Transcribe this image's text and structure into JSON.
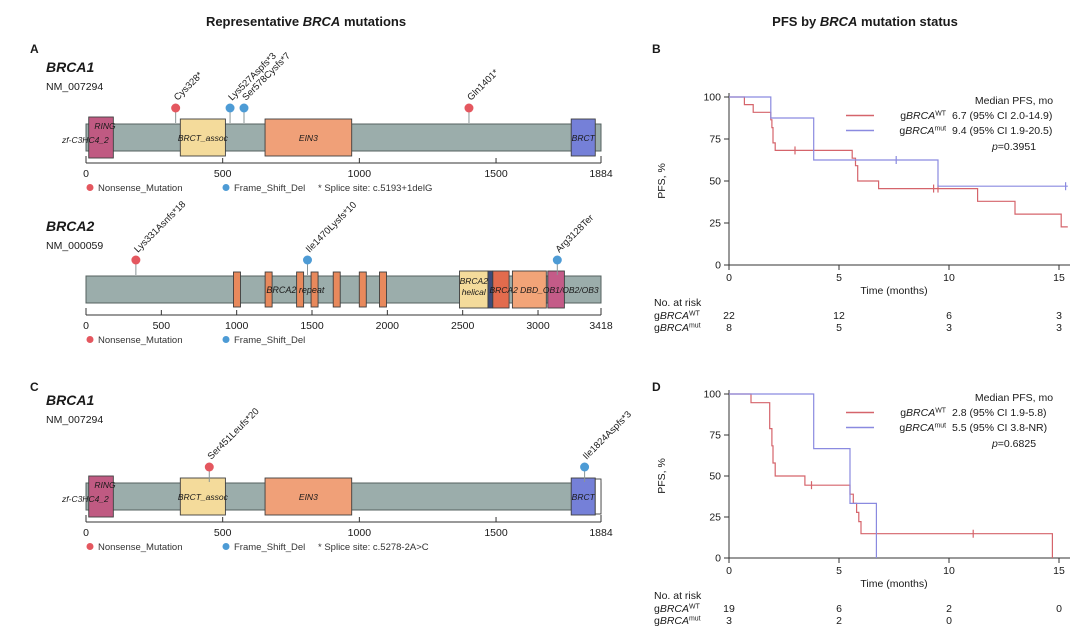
{
  "titles": {
    "left": {
      "pre": "Representative ",
      "gene": "BRCA",
      "post": " mutations"
    },
    "right": {
      "pre": "PFS by ",
      "gene": "BRCA",
      "post": " mutation status"
    }
  },
  "panel_labels": {
    "a": "A",
    "b": "B",
    "c": "C",
    "d": "D"
  },
  "colors": {
    "bar_body": "#9badab",
    "bar_border": "#55615f",
    "nonsense": "#e4575f",
    "frameshift": "#4d9bd5",
    "km_wt": "#d5646b",
    "km_mut": "#8a8ae0",
    "domain_border": "#3f3f3f",
    "axis": "#333333",
    "ring": "#c05a82",
    "brct_assoc": "#f4db9b",
    "ein3": "#f0a078",
    "brct": "#7580d8",
    "repeat": "#e8895c",
    "helical": "#f4db9b",
    "navy": "#3d4b7a",
    "dbd": "#e26b4d",
    "dbd_ob": "#f2a478",
    "ob_mag": "#c45b88",
    "end_box": "#ffffff"
  },
  "chart_data": [
    {
      "type": "lollipop",
      "panel": "A",
      "gene": "BRCA1",
      "transcript": "NM_007294",
      "length": 1884,
      "axis_ticks": [
        0,
        500,
        1000,
        1500,
        1884
      ],
      "domains": [
        {
          "label": "RING",
          "sublabel": "zf-C3HC4_2",
          "start": 10,
          "end": 100,
          "color_key": "ring",
          "style": "ring"
        },
        {
          "label": "BRCT_assoc",
          "start": 345,
          "end": 510,
          "color_key": "brct_assoc"
        },
        {
          "label": "EIN3",
          "start": 655,
          "end": 972,
          "color_key": "ein3"
        },
        {
          "label": "BRCT",
          "start": 1775,
          "end": 1863,
          "color_key": "brct"
        }
      ],
      "mutations": [
        {
          "label": "Cys328*",
          "pos": 328,
          "type": "nonsense"
        },
        {
          "label": "Lys527Aspfs*3",
          "pos": 527,
          "type": "frameshift"
        },
        {
          "label": "Ser578Cysfs*7",
          "pos": 578,
          "type": "frameshift"
        },
        {
          "label": "Gln1401*",
          "pos": 1401,
          "type": "nonsense"
        }
      ],
      "legend": {
        "nonsense": "Nonsense_Mutation",
        "frameshift": "Frame_Shift_Del",
        "note": "* Splice site: c.5193+1delG"
      }
    },
    {
      "type": "lollipop",
      "panel": "A",
      "gene": "BRCA2",
      "transcript": "NM_000059",
      "length": 3418,
      "axis_ticks": [
        0,
        500,
        1000,
        1500,
        2000,
        2500,
        3000,
        3418
      ],
      "repeats": [
        1002,
        1212,
        1421,
        1517,
        1664,
        1837,
        1971
      ],
      "repeat_label": {
        "text": "BRCA2 repeat",
        "center": 1390
      },
      "domains": [
        {
          "label": "BRCA2",
          "label2": "helical",
          "start": 2479,
          "end": 2668,
          "color_key": "helical"
        },
        {
          "label": "",
          "start": 2668,
          "end": 2700,
          "color_key": "navy"
        },
        {
          "label": "",
          "start": 2700,
          "end": 2808,
          "color_key": "dbd"
        },
        {
          "label": "",
          "start": 2830,
          "end": 3055,
          "color_key": "dbd_ob"
        },
        {
          "label": "",
          "start": 3065,
          "end": 3175,
          "color_key": "ob_mag"
        }
      ],
      "span_label": {
        "text": "BRCA2 DBD_OB1/OB2/OB3",
        "center": 3040
      },
      "mutations": [
        {
          "label": "Lys331Asnfs*18",
          "pos": 331,
          "type": "nonsense"
        },
        {
          "label": "Ile1470Lysfs*10",
          "pos": 1470,
          "type": "frameshift"
        },
        {
          "label": "Arg3128Ter",
          "pos": 3128,
          "type": "frameshift"
        }
      ],
      "legend": {
        "nonsense": "Nonsense_Mutation",
        "frameshift": "Frame_Shift_Del",
        "note": ""
      }
    },
    {
      "type": "lollipop",
      "panel": "C",
      "gene": "BRCA1",
      "transcript": "NM_007294",
      "length": 1884,
      "axis_ticks": [
        0,
        500,
        1000,
        1500,
        1884
      ],
      "domains": [
        {
          "label": "RING",
          "sublabel": "zf-C3HC4_2",
          "start": 10,
          "end": 100,
          "color_key": "ring",
          "style": "ring"
        },
        {
          "label": "BRCT_assoc",
          "start": 345,
          "end": 510,
          "color_key": "brct_assoc"
        },
        {
          "label": "EIN3",
          "start": 655,
          "end": 972,
          "color_key": "ein3"
        },
        {
          "label": "BRCT",
          "start": 1775,
          "end": 1863,
          "color_key": "brct"
        }
      ],
      "end_box": {
        "start": 1863,
        "end": 1884
      },
      "mutations": [
        {
          "label": "Ser451Leufs*20",
          "pos": 451,
          "type": "nonsense"
        },
        {
          "label": "Ile1824Aspfs*3",
          "pos": 1824,
          "type": "frameshift"
        }
      ],
      "legend": {
        "nonsense": "Nonsense_Mutation",
        "frameshift": "Frame_Shift_Del",
        "note": "* Splice site: c.5278-2A>C"
      }
    },
    {
      "type": "km",
      "panel": "B",
      "ylabel": "PFS, %",
      "xlabel": "Time (months)",
      "yticks": [
        0,
        25,
        50,
        75,
        100
      ],
      "xticks": [
        0,
        5,
        10,
        15
      ],
      "xmax": 15.5,
      "legend": {
        "header": "Median PFS, mo",
        "p_italic": "p",
        "p_rest": "=0.3951"
      },
      "series": [
        {
          "key": "wt",
          "color_key": "km_wt",
          "prefix": "g",
          "gene": "BRCA",
          "sup": "WT",
          "median": "6.7 (95% CI 2.0-14.9)",
          "points": [
            [
              0,
              100
            ],
            [
              0.7,
              100
            ],
            [
              0.7,
              95.5
            ],
            [
              1.1,
              95.5
            ],
            [
              1.1,
              90.9
            ],
            [
              1.9,
              90.9
            ],
            [
              1.9,
              86.4
            ],
            [
              1.95,
              86.4
            ],
            [
              1.95,
              81.8
            ],
            [
              2.0,
              81.8
            ],
            [
              2.0,
              72.7
            ],
            [
              2.1,
              72.7
            ],
            [
              2.1,
              68.2
            ],
            [
              5.6,
              68.2
            ],
            [
              5.6,
              63.6
            ],
            [
              5.75,
              63.6
            ],
            [
              5.75,
              59.1
            ],
            [
              5.85,
              59.1
            ],
            [
              5.85,
              50
            ],
            [
              6.8,
              50
            ],
            [
              6.8,
              45.5
            ],
            [
              11.3,
              45.5
            ],
            [
              11.3,
              37.9
            ],
            [
              13.0,
              37.9
            ],
            [
              13.0,
              30.3
            ],
            [
              15.1,
              30.3
            ],
            [
              15.1,
              22.7
            ],
            [
              15.4,
              22.7
            ]
          ],
          "censors": [
            [
              3.0,
              68.2
            ],
            [
              9.3,
              45.5
            ],
            [
              9.5,
              45.5
            ]
          ]
        },
        {
          "key": "mut",
          "color_key": "km_mut",
          "prefix": "g",
          "gene": "BRCA",
          "sup": "mut",
          "median": "9.4 (95% CI 1.9-20.5)",
          "points": [
            [
              0,
              100
            ],
            [
              1.9,
              100
            ],
            [
              1.9,
              87.5
            ],
            [
              3.85,
              87.5
            ],
            [
              3.85,
              62.5
            ],
            [
              9.5,
              62.5
            ],
            [
              9.5,
              46.9
            ],
            [
              15.4,
              46.9
            ]
          ],
          "censors": [
            [
              7.6,
              62.5
            ],
            [
              15.3,
              46.9
            ]
          ]
        }
      ],
      "risk": {
        "header": "No. at risk",
        "rows": [
          {
            "prefix": "g",
            "gene": "BRCA",
            "sup": "WT",
            "counts": [
              "22",
              "12",
              "6",
              "3"
            ]
          },
          {
            "prefix": "g",
            "gene": "BRCA",
            "sup": "mut",
            "counts": [
              "8",
              "5",
              "3",
              "3"
            ]
          }
        ]
      }
    },
    {
      "type": "km",
      "panel": "D",
      "ylabel": "PFS, %",
      "xlabel": "Time (months)",
      "yticks": [
        0,
        25,
        50,
        75,
        100
      ],
      "xticks": [
        0,
        5,
        10,
        15
      ],
      "xmax": 15.5,
      "legend": {
        "header": "Median PFS, mo",
        "p_italic": "p",
        "p_rest": "=0.6825"
      },
      "series": [
        {
          "key": "wt",
          "color_key": "km_wt",
          "prefix": "g",
          "gene": "BRCA",
          "sup": "WT",
          "median": "2.8 (95% CI 1.9-5.8)",
          "points": [
            [
              0,
              100
            ],
            [
              1.0,
              100
            ],
            [
              1.0,
              94.7
            ],
            [
              1.85,
              94.7
            ],
            [
              1.85,
              78.9
            ],
            [
              1.95,
              78.9
            ],
            [
              1.95,
              68.4
            ],
            [
              2.0,
              68.4
            ],
            [
              2.0,
              57.9
            ],
            [
              2.1,
              57.9
            ],
            [
              2.1,
              50
            ],
            [
              3.45,
              50
            ],
            [
              3.45,
              44.4
            ],
            [
              5.5,
              44.4
            ],
            [
              5.5,
              38.9
            ],
            [
              5.65,
              38.9
            ],
            [
              5.65,
              33.3
            ],
            [
              5.8,
              33.3
            ],
            [
              5.8,
              27.8
            ],
            [
              5.9,
              27.8
            ],
            [
              5.9,
              22.2
            ],
            [
              6.0,
              22.2
            ],
            [
              6.0,
              14.8
            ],
            [
              14.7,
              14.8
            ],
            [
              14.7,
              0
            ]
          ],
          "censors": [
            [
              3.75,
              44.4
            ],
            [
              11.1,
              14.8
            ]
          ]
        },
        {
          "key": "mut",
          "color_key": "km_mut",
          "prefix": "g",
          "gene": "BRCA",
          "sup": "mut",
          "median": "5.5 (95% CI 3.8-NR)",
          "points": [
            [
              0,
              100
            ],
            [
              3.85,
              100
            ],
            [
              3.85,
              66.7
            ],
            [
              5.5,
              66.7
            ],
            [
              5.5,
              33.3
            ],
            [
              6.7,
              33.3
            ],
            [
              6.7,
              0
            ]
          ],
          "censors": []
        }
      ],
      "risk": {
        "header": "No. at risk",
        "rows": [
          {
            "prefix": "g",
            "gene": "BRCA",
            "sup": "WT",
            "counts": [
              "19",
              "6",
              "2",
              "0"
            ]
          },
          {
            "prefix": "g",
            "gene": "BRCA",
            "sup": "mut",
            "counts": [
              "3",
              "2",
              "0"
            ]
          }
        ]
      }
    }
  ]
}
